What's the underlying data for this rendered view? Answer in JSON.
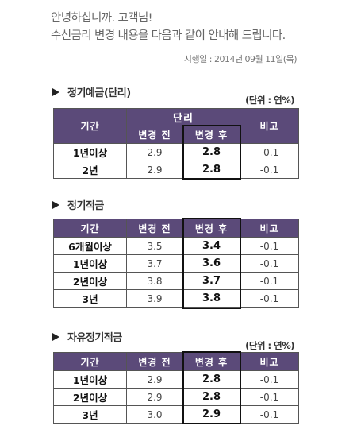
{
  "greeting": {
    "line1": "안녕하십니까. 고객님!",
    "line2": "수신금리 변경 내용을 다음과 같이 안내해 드립니다."
  },
  "effective_date": "시행일 : 2014년 09월 11일(목)",
  "sections": [
    {
      "title": "정기예금(단리)",
      "unit": "(단위 : 연%)",
      "group_header": "단리",
      "headers": {
        "period": "기간",
        "before": "변경 전",
        "after": "변경 후",
        "note": "비고"
      },
      "rows": [
        {
          "period": "1년이상",
          "before": "2.9",
          "after": "2.8",
          "note": "-0.1"
        },
        {
          "period": "2년",
          "before": "2.9",
          "after": "2.8",
          "note": "-0.1"
        }
      ]
    },
    {
      "title": "정기적금",
      "headers": {
        "period": "기간",
        "before": "변경 전",
        "after": "변경 후",
        "note": "비고"
      },
      "rows": [
        {
          "period": "6개월이상",
          "before": "3.5",
          "after": "3.4",
          "note": "-0.1"
        },
        {
          "period": "1년이상",
          "before": "3.7",
          "after": "3.6",
          "note": "-0.1"
        },
        {
          "period": "2년이상",
          "before": "3.8",
          "after": "3.7",
          "note": "-0.1"
        },
        {
          "period": "3년",
          "before": "3.9",
          "after": "3.8",
          "note": "-0.1"
        }
      ]
    },
    {
      "title": "자유정기적금",
      "unit": "(단위 : 연%)",
      "headers": {
        "period": "기간",
        "before": "변경 전",
        "after": "변경 후",
        "note": "비고"
      },
      "rows": [
        {
          "period": "1년이상",
          "before": "2.9",
          "after": "2.8",
          "note": "-0.1"
        },
        {
          "period": "2년이상",
          "before": "2.9",
          "after": "2.8",
          "note": "-0.1"
        },
        {
          "period": "3년",
          "before": "3.0",
          "after": "2.9",
          "note": "-0.1"
        }
      ]
    }
  ],
  "colors": {
    "header_bg": "#5b4a79",
    "highlight_border": "#111111"
  }
}
